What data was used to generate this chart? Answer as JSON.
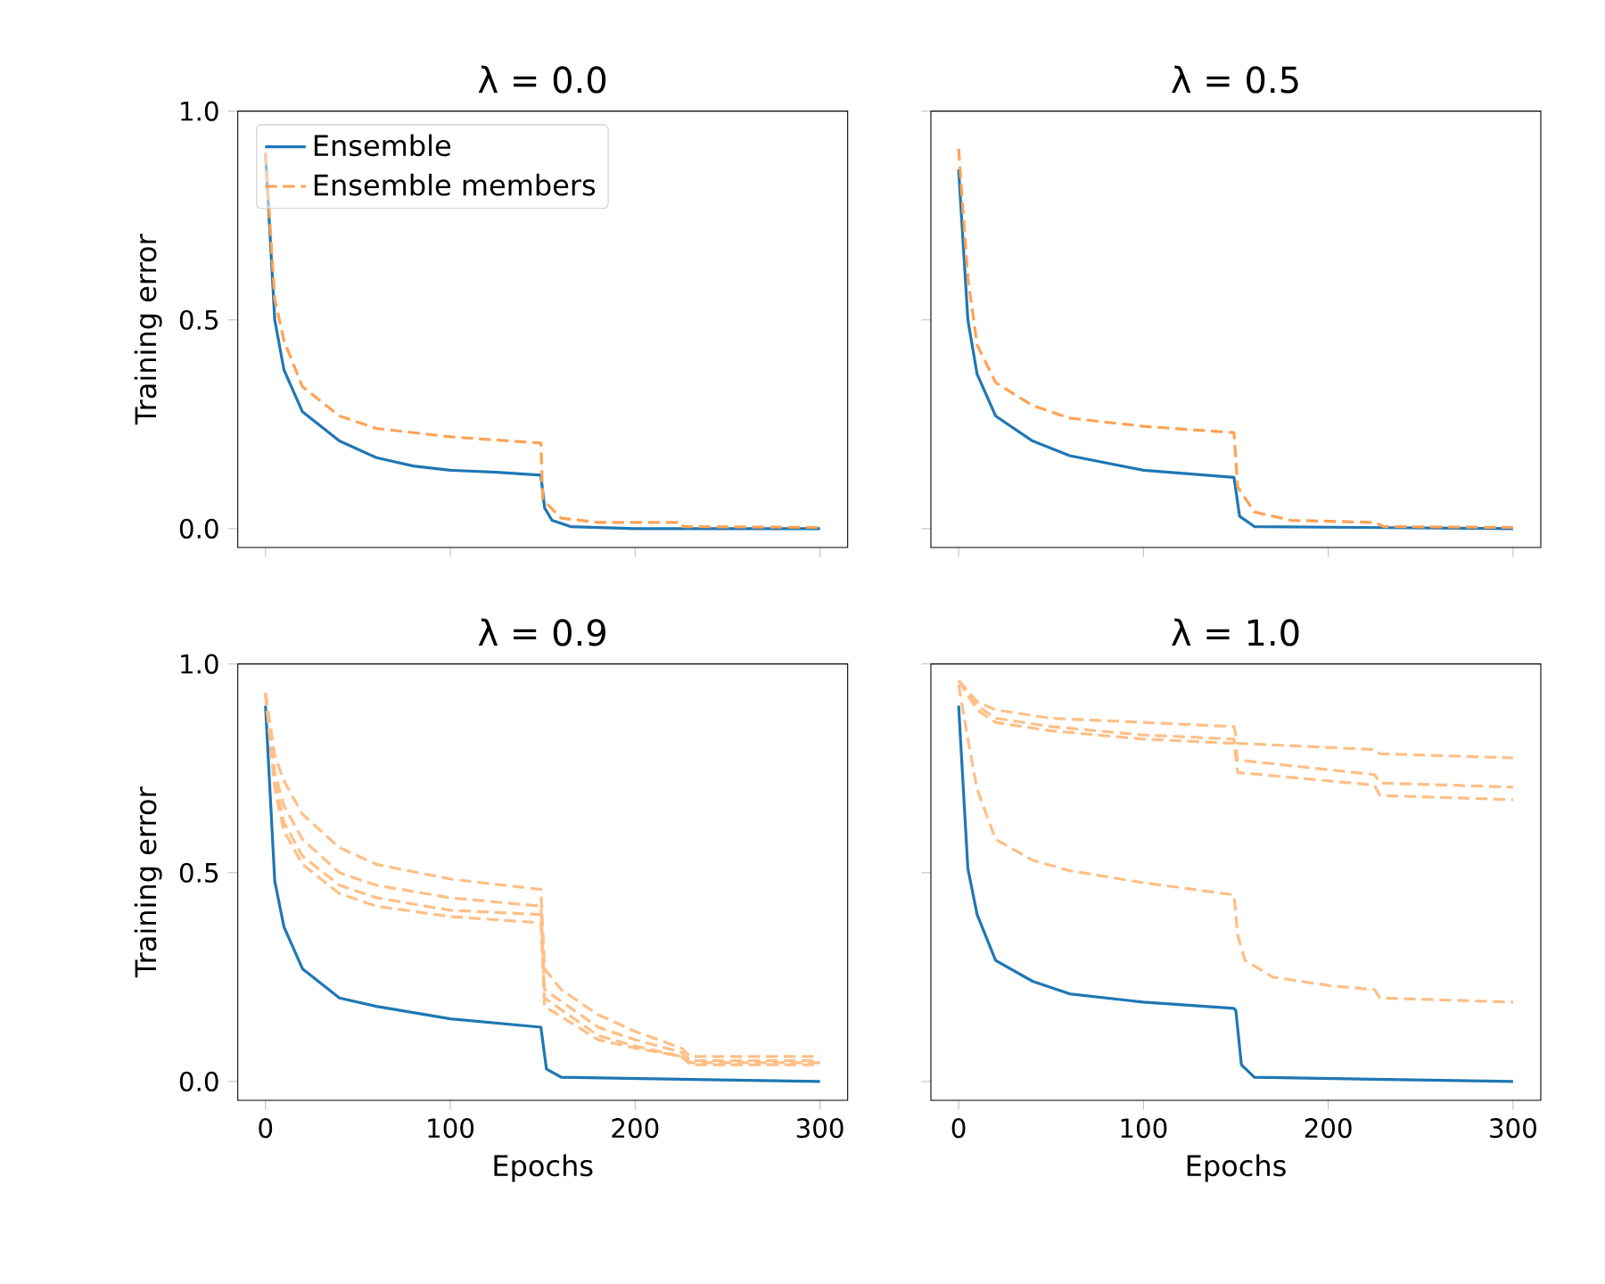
{
  "chart_data": [
    {
      "type": "line",
      "title": "λ = 0.0",
      "ylabel": "Training error",
      "xlim": [
        -15,
        315
      ],
      "ylim": [
        -0.045,
        1.0
      ],
      "xticks": [
        {
          "value": 0,
          "label": null
        },
        {
          "value": 100,
          "label": null
        },
        {
          "value": 200,
          "label": null
        },
        {
          "value": 300,
          "label": null
        }
      ],
      "yticks": [
        {
          "value": 0,
          "label": "0.0"
        },
        {
          "value": 0.5,
          "label": "0.5"
        },
        {
          "value": 1.0,
          "label": "1.0"
        }
      ],
      "tick_labels": "y",
      "legend": "top left",
      "grid": false,
      "series": [
        {
          "name": "Ensemble",
          "color": "#1f77b4",
          "line_style": "solid",
          "x": [
            0,
            5,
            10,
            20,
            40,
            60,
            80,
            100,
            125,
            149,
            151,
            155,
            165,
            200,
            300
          ],
          "values": [
            0.9,
            0.5,
            0.38,
            0.28,
            0.21,
            0.17,
            0.15,
            0.14,
            0.135,
            0.128,
            0.05,
            0.02,
            0.005,
            0.0,
            0.0
          ]
        },
        {
          "name": "Ensemble members",
          "color": "#ffa255",
          "line_style": "dashed",
          "x": [
            0,
            5,
            10,
            20,
            40,
            60,
            100,
            149,
            150,
            160,
            180,
            225,
            226,
            300
          ],
          "values": [
            0.9,
            0.55,
            0.45,
            0.34,
            0.27,
            0.24,
            0.22,
            0.205,
            0.07,
            0.025,
            0.015,
            0.015,
            0.005,
            0.003
          ]
        }
      ]
    },
    {
      "type": "line",
      "title": "λ = 0.5",
      "xlim": [
        -15,
        315
      ],
      "ylim": [
        -0.045,
        1.0
      ],
      "xticks": [
        {
          "value": 0,
          "label": null
        },
        {
          "value": 100,
          "label": null
        },
        {
          "value": 200,
          "label": null
        },
        {
          "value": 300,
          "label": null
        }
      ],
      "yticks": [
        {
          "value": 0,
          "label": null
        },
        {
          "value": 0.5,
          "label": null
        },
        {
          "value": 1.0,
          "label": null
        }
      ],
      "tick_labels": false,
      "grid": false,
      "series": [
        {
          "color": "#1f77b4",
          "line_style": "solid",
          "x": [
            0,
            5,
            10,
            20,
            40,
            60,
            100,
            149,
            152,
            160,
            300
          ],
          "values": [
            0.86,
            0.5,
            0.37,
            0.27,
            0.21,
            0.175,
            0.14,
            0.123,
            0.03,
            0.005,
            0.0
          ]
        },
        {
          "color": "#ffa255",
          "line_style": "dashed",
          "x": [
            0,
            5,
            10,
            20,
            40,
            60,
            100,
            149,
            151,
            160,
            180,
            225,
            230,
            300
          ],
          "values": [
            0.91,
            0.6,
            0.44,
            0.35,
            0.295,
            0.265,
            0.245,
            0.23,
            0.1,
            0.04,
            0.02,
            0.015,
            0.005,
            0.003
          ]
        }
      ]
    },
    {
      "type": "line",
      "title": "λ = 0.9",
      "xlabel": "Epochs",
      "ylabel": "Training error",
      "xlim": [
        -15,
        315
      ],
      "ylim": [
        -0.045,
        1.0
      ],
      "xticks": [
        0,
        100,
        200,
        300
      ],
      "yticks": [
        {
          "value": 0,
          "label": "0.0"
        },
        {
          "value": 0.5,
          "label": "0.5"
        },
        {
          "value": 1.0,
          "label": "1.0"
        }
      ],
      "grid": false,
      "series": [
        {
          "color": "#1f77b4",
          "line_style": "solid",
          "x": [
            0,
            5,
            10,
            20,
            40,
            60,
            100,
            149,
            152,
            160,
            300
          ],
          "values": [
            0.9,
            0.48,
            0.37,
            0.27,
            0.2,
            0.18,
            0.15,
            0.13,
            0.03,
            0.01,
            0.0
          ]
        },
        {
          "color": "#ffbf86",
          "line_style": "dashed",
          "x": [
            0,
            5,
            10,
            20,
            40,
            60,
            100,
            149,
            151,
            160,
            180,
            200,
            225,
            230,
            300
          ],
          "values": [
            0.93,
            0.78,
            0.72,
            0.64,
            0.56,
            0.52,
            0.485,
            0.46,
            0.27,
            0.22,
            0.16,
            0.12,
            0.08,
            0.06,
            0.06
          ]
        },
        {
          "color": "#ffbf86",
          "line_style": "dashed",
          "x": [
            0,
            5,
            10,
            20,
            40,
            60,
            100,
            149,
            151,
            180,
            200,
            225,
            230,
            300
          ],
          "values": [
            0.93,
            0.74,
            0.66,
            0.58,
            0.5,
            0.47,
            0.44,
            0.42,
            0.22,
            0.13,
            0.1,
            0.07,
            0.05,
            0.05
          ]
        },
        {
          "color": "#ffbf86",
          "line_style": "dashed",
          "x": [
            0,
            5,
            10,
            20,
            40,
            60,
            100,
            149,
            151,
            180,
            200,
            225,
            230,
            300
          ],
          "values": [
            0.93,
            0.72,
            0.62,
            0.54,
            0.47,
            0.44,
            0.41,
            0.4,
            0.2,
            0.11,
            0.085,
            0.06,
            0.045,
            0.045
          ]
        },
        {
          "color": "#ffbf86",
          "line_style": "dashed",
          "x": [
            0,
            5,
            10,
            20,
            40,
            60,
            100,
            149,
            151,
            180,
            200,
            225,
            230,
            300
          ],
          "values": [
            0.93,
            0.7,
            0.6,
            0.52,
            0.45,
            0.42,
            0.395,
            0.38,
            0.18,
            0.1,
            0.08,
            0.06,
            0.04,
            0.04
          ]
        }
      ]
    },
    {
      "type": "line",
      "title": "λ = 1.0",
      "xlabel": "Epochs",
      "xlim": [
        -15,
        315
      ],
      "ylim": [
        -0.045,
        1.0
      ],
      "xticks": [
        0,
        100,
        200,
        300
      ],
      "yticks": [
        {
          "value": 0,
          "label": null
        },
        {
          "value": 0.5,
          "label": null
        },
        {
          "value": 1.0,
          "label": null
        }
      ],
      "tick_labels": "x",
      "grid": false,
      "series": [
        {
          "color": "#1f77b4",
          "line_style": "solid",
          "x": [
            0,
            5,
            10,
            20,
            40,
            60,
            100,
            149,
            150,
            153,
            160,
            300
          ],
          "values": [
            0.9,
            0.51,
            0.4,
            0.29,
            0.24,
            0.21,
            0.19,
            0.175,
            0.17,
            0.04,
            0.01,
            0.0
          ]
        },
        {
          "color": "#ffbf86",
          "line_style": "dashed",
          "x": [
            0,
            10,
            20,
            50,
            100,
            149,
            151,
            225,
            228,
            300
          ],
          "values": [
            0.96,
            0.91,
            0.89,
            0.87,
            0.86,
            0.85,
            0.81,
            0.795,
            0.785,
            0.775
          ]
        },
        {
          "color": "#ffbf86",
          "line_style": "dashed",
          "x": [
            0,
            10,
            20,
            50,
            100,
            149,
            151,
            225,
            228,
            300
          ],
          "values": [
            0.96,
            0.9,
            0.87,
            0.85,
            0.83,
            0.82,
            0.77,
            0.735,
            0.715,
            0.705
          ]
        },
        {
          "color": "#ffbf86",
          "line_style": "dashed",
          "x": [
            0,
            10,
            20,
            50,
            100,
            149,
            151,
            225,
            228,
            300
          ],
          "values": [
            0.96,
            0.89,
            0.86,
            0.84,
            0.82,
            0.81,
            0.74,
            0.71,
            0.685,
            0.675
          ]
        },
        {
          "color": "#ffbf86",
          "line_style": "dashed",
          "x": [
            0,
            5,
            10,
            20,
            40,
            60,
            100,
            149,
            151,
            155,
            170,
            200,
            225,
            228,
            300
          ],
          "values": [
            0.95,
            0.82,
            0.7,
            0.58,
            0.53,
            0.505,
            0.476,
            0.447,
            0.35,
            0.29,
            0.25,
            0.23,
            0.22,
            0.2,
            0.19
          ]
        }
      ]
    }
  ]
}
